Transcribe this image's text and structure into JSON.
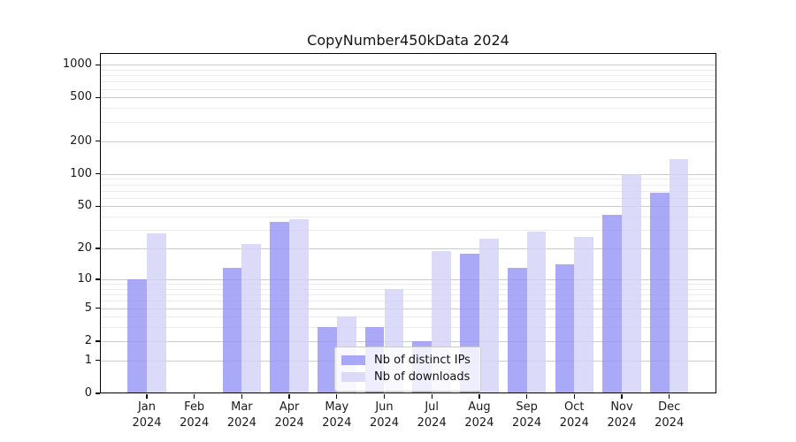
{
  "chart_data": {
    "type": "bar",
    "title": "CopyNumber450kData 2024",
    "categories": [
      "Jan",
      "Feb",
      "Mar",
      "Apr",
      "May",
      "Jun",
      "Jul",
      "Aug",
      "Sep",
      "Oct",
      "Nov",
      "Dec"
    ],
    "category_year": "2024",
    "series": [
      {
        "name": "Nb of distinct IPs",
        "color": "#9494f5",
        "values": [
          10,
          0,
          13,
          36,
          3,
          3,
          2,
          18,
          13,
          14,
          42,
          67
        ]
      },
      {
        "name": "Nb of downloads",
        "color": "#d2d2f7",
        "values": [
          28,
          0,
          22,
          38,
          4,
          8,
          19,
          25,
          29,
          26,
          100,
          137
        ]
      }
    ],
    "xlabel": "",
    "ylabel": "",
    "y_scale": "log10(value+1)",
    "y_major_ticks": [
      0,
      1,
      2,
      5,
      10,
      20,
      50,
      100,
      200,
      500,
      1000
    ],
    "y_minor_gridlines": [
      3,
      4,
      6,
      7,
      8,
      9,
      30,
      40,
      60,
      70,
      80,
      90,
      300,
      400,
      600,
      700,
      800,
      900
    ],
    "ylim": [
      0,
      1280
    ],
    "grid": "on",
    "legend_position": "inside-bottom-center",
    "colors": {
      "major_grid": "#cccccc",
      "minor_grid": "#ebebeb",
      "frame": "#000000",
      "background": "#ffffff"
    }
  }
}
